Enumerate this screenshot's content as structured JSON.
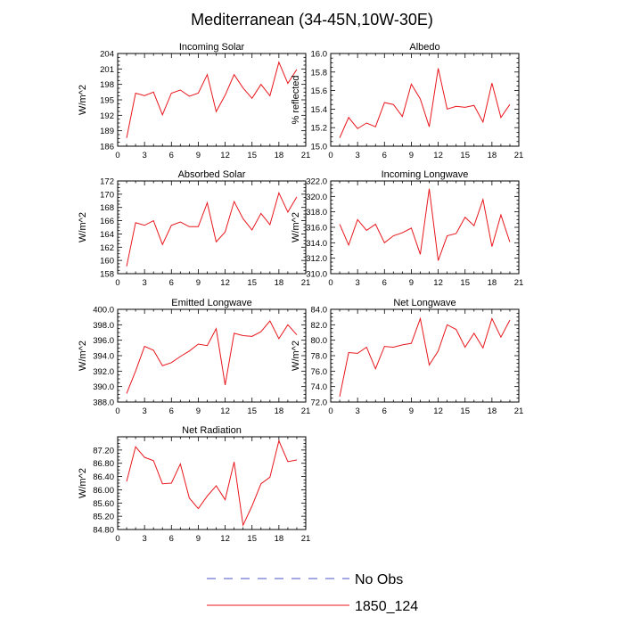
{
  "title": "Mediterranean (34-45N,10W-30E)",
  "legend": {
    "placement": "bottom-center",
    "items": [
      {
        "label": "No Obs",
        "color": "#4a50c7",
        "style": "dashed"
      },
      {
        "label": "1850_124",
        "color": "#e8161c",
        "style": "solid"
      }
    ]
  },
  "chart_data": [
    {
      "type": "line",
      "title": "Incoming Solar",
      "ylabel": "W/m^2",
      "xlim": [
        0,
        21
      ],
      "xticks": [
        "0",
        "3",
        "6",
        "9",
        "12",
        "15",
        "18",
        "21"
      ],
      "ylim": [
        186,
        204
      ],
      "yticks": [
        "186",
        "189",
        "192",
        "195",
        "198",
        "201",
        "204"
      ],
      "series": [
        {
          "color": "#e8161c",
          "x": [
            1,
            2,
            3,
            4,
            5,
            6,
            7,
            8,
            9,
            10,
            11,
            12,
            13,
            14,
            15,
            16,
            17,
            18,
            19,
            20
          ],
          "values": [
            187.6,
            196.3,
            195.8,
            196.5,
            192.1,
            196.3,
            196.9,
            195.7,
            196.3,
            199.9,
            192.7,
            195.9,
            199.9,
            197.3,
            195.3,
            198.0,
            195.8,
            202.3,
            198.2,
            200.9
          ]
        }
      ]
    },
    {
      "type": "line",
      "title": "Albedo",
      "ylabel": "% reflected",
      "xlim": [
        0,
        21
      ],
      "xticks": [
        "0",
        "3",
        "6",
        "9",
        "12",
        "15",
        "18",
        "21"
      ],
      "ylim": [
        15.0,
        16.0
      ],
      "yticks": [
        "15.0",
        "15.2",
        "15.4",
        "15.6",
        "15.8",
        "16.0"
      ],
      "series": [
        {
          "color": "#e8161c",
          "x": [
            1,
            2,
            3,
            4,
            5,
            6,
            7,
            8,
            9,
            10,
            11,
            12,
            13,
            14,
            15,
            16,
            17,
            18,
            19,
            20
          ],
          "values": [
            15.09,
            15.31,
            15.19,
            15.25,
            15.21,
            15.47,
            15.45,
            15.32,
            15.67,
            15.51,
            15.21,
            15.84,
            15.4,
            15.43,
            15.42,
            15.44,
            15.26,
            15.68,
            15.31,
            15.45
          ]
        }
      ]
    },
    {
      "type": "line",
      "title": "Absorbed Solar",
      "ylabel": "W/m^2",
      "xlim": [
        0,
        21
      ],
      "xticks": [
        "0",
        "3",
        "6",
        "9",
        "12",
        "15",
        "18",
        "21"
      ],
      "ylim": [
        158,
        172
      ],
      "yticks": [
        "158",
        "160",
        "162",
        "164",
        "166",
        "168",
        "170",
        "172"
      ],
      "series": [
        {
          "color": "#e8161c",
          "x": [
            1,
            2,
            3,
            4,
            5,
            6,
            7,
            8,
            9,
            10,
            11,
            12,
            13,
            14,
            15,
            16,
            17,
            18,
            19,
            20
          ],
          "values": [
            159.1,
            165.7,
            165.3,
            166.0,
            162.4,
            165.3,
            165.8,
            165.1,
            165.1,
            168.7,
            162.8,
            164.3,
            168.9,
            166.3,
            164.6,
            167.1,
            165.4,
            170.2,
            167.3,
            169.6
          ]
        }
      ]
    },
    {
      "type": "line",
      "title": "Incoming Longwave",
      "ylabel": "W/m^2",
      "xlim": [
        0,
        21
      ],
      "xticks": [
        "0",
        "3",
        "6",
        "9",
        "12",
        "15",
        "18",
        "21"
      ],
      "ylim": [
        310.0,
        322.0
      ],
      "yticks": [
        "310.0",
        "312.0",
        "314.0",
        "316.0",
        "318.0",
        "320.0",
        "322.0"
      ],
      "series": [
        {
          "color": "#e8161c",
          "x": [
            1,
            2,
            3,
            4,
            5,
            6,
            7,
            8,
            9,
            10,
            11,
            12,
            13,
            14,
            15,
            16,
            17,
            18,
            19,
            20
          ],
          "values": [
            316.4,
            313.7,
            317.0,
            315.6,
            316.4,
            314.0,
            314.9,
            315.3,
            315.9,
            312.5,
            321.0,
            311.7,
            314.9,
            315.2,
            317.3,
            316.2,
            319.6,
            313.5,
            317.6,
            314.1
          ]
        }
      ]
    },
    {
      "type": "line",
      "title": "Emitted Longwave",
      "ylabel": "W/m^2",
      "xlim": [
        0,
        21
      ],
      "xticks": [
        "0",
        "3",
        "6",
        "9",
        "12",
        "15",
        "18",
        "21"
      ],
      "ylim": [
        388.0,
        400.0
      ],
      "yticks": [
        "388.0",
        "390.0",
        "392.0",
        "394.0",
        "396.0",
        "398.0",
        "400.0"
      ],
      "series": [
        {
          "color": "#e8161c",
          "x": [
            1,
            2,
            3,
            4,
            5,
            6,
            7,
            8,
            9,
            10,
            11,
            12,
            13,
            14,
            15,
            16,
            17,
            18,
            19,
            20
          ],
          "values": [
            389.1,
            392.0,
            395.2,
            394.7,
            392.7,
            393.1,
            393.9,
            394.6,
            395.5,
            395.3,
            397.5,
            390.2,
            396.9,
            396.6,
            396.5,
            397.1,
            398.5,
            396.2,
            398.0,
            396.7
          ]
        }
      ]
    },
    {
      "type": "line",
      "title": "Net Longwave",
      "ylabel": "W/m^2",
      "xlim": [
        0,
        21
      ],
      "xticks": [
        "0",
        "3",
        "6",
        "9",
        "12",
        "15",
        "18",
        "21"
      ],
      "ylim": [
        72.0,
        84.0
      ],
      "yticks": [
        "72.0",
        "74.0",
        "76.0",
        "78.0",
        "80.0",
        "82.0",
        "84.0"
      ],
      "series": [
        {
          "color": "#e8161c",
          "x": [
            1,
            2,
            3,
            4,
            5,
            6,
            7,
            8,
            9,
            10,
            11,
            12,
            13,
            14,
            15,
            16,
            17,
            18,
            19,
            20
          ],
          "values": [
            72.7,
            78.4,
            78.3,
            79.1,
            76.3,
            79.2,
            79.1,
            79.4,
            79.6,
            82.8,
            76.8,
            78.6,
            82.0,
            81.4,
            79.1,
            80.9,
            79.0,
            82.8,
            80.4,
            82.6
          ]
        }
      ]
    },
    {
      "type": "line",
      "title": "Net Radiation",
      "ylabel": "W/m^2",
      "xlim": [
        0,
        21
      ],
      "xticks": [
        "0",
        "3",
        "6",
        "9",
        "12",
        "15",
        "18",
        "21"
      ],
      "ylim": [
        84.8,
        87.6
      ],
      "yticks": [
        "84.80",
        "85.20",
        "85.60",
        "86.00",
        "86.40",
        "86.80",
        "87.20"
      ],
      "series": [
        {
          "color": "#e8161c",
          "x": [
            1,
            2,
            3,
            4,
            5,
            6,
            7,
            8,
            9,
            10,
            11,
            12,
            13,
            14,
            15,
            16,
            17,
            18,
            19,
            20
          ],
          "values": [
            86.25,
            87.3,
            86.98,
            86.88,
            86.18,
            86.2,
            86.78,
            85.75,
            85.43,
            85.81,
            86.12,
            85.7,
            86.84,
            84.93,
            85.51,
            86.18,
            86.38,
            87.48,
            86.85,
            86.9
          ]
        }
      ]
    }
  ]
}
